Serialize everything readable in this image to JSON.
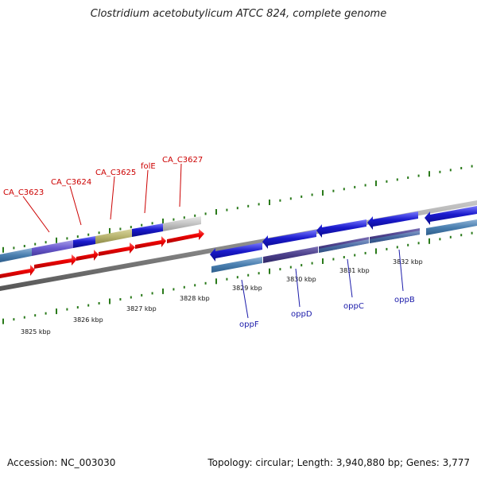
{
  "title": "Clostridium acetobutylicum ATCC 824, complete genome",
  "accession_label": "Accession: NC_003030",
  "stats_label": "Topology: circular; Length: 3,940,880 bp; Genes: 3,777",
  "kbp_labels": [
    "3825 kbp",
    "3826 kbp",
    "3827 kbp",
    "3828 kbp",
    "3829 kbp",
    "3830 kbp",
    "3831 kbp",
    "3832 kbp"
  ],
  "top_gene_labels": [
    "CA_C3623",
    "CA_C3624",
    "CA_C3625",
    "folE",
    "CA_C3627"
  ],
  "bottom_gene_labels": [
    "oppF",
    "oppD",
    "oppC",
    "oppB"
  ],
  "colors": {
    "forward_cds": "#ee0000",
    "reverse_cds": "#1a1acc",
    "label_top": "#cc0000",
    "label_bottom": "#1a1aaa",
    "tick": "#2a7a1a",
    "backbone": "#8a8a8a"
  }
}
